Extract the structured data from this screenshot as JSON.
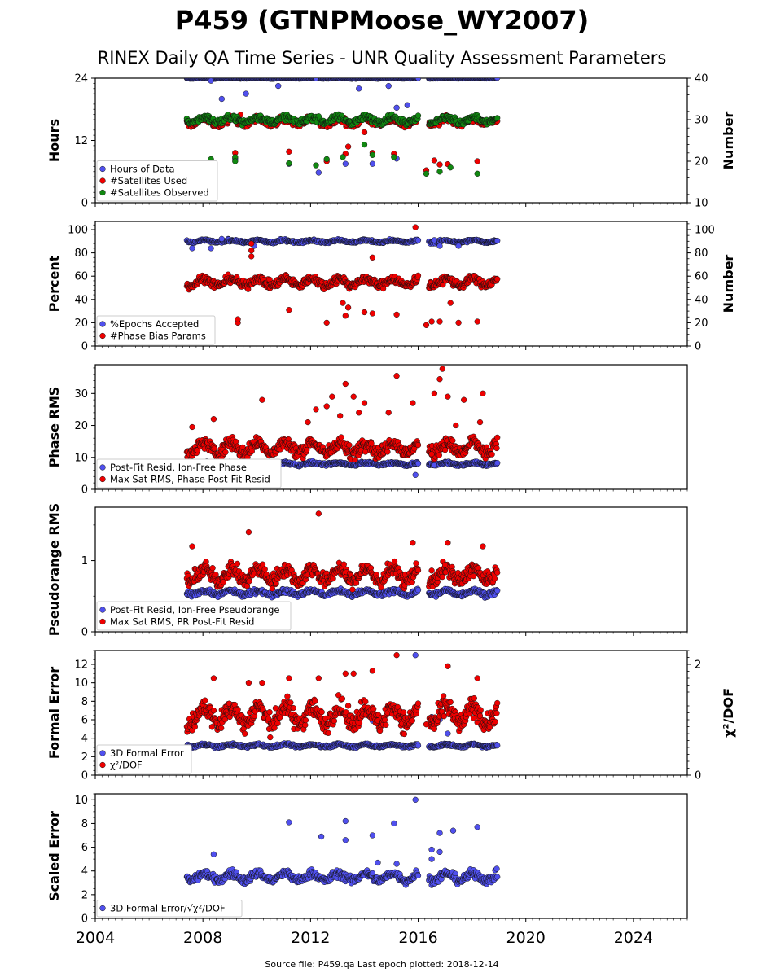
{
  "title": "P459 (GTNPMoose_WY2007)",
  "subtitle": "RINEX Daily QA Time Series - UNR Quality Assessment Parameters",
  "footer": "Source file: P459.qa Last epoch plotted: 2018-12-14",
  "x_axis": {
    "range": [
      2004,
      2026
    ],
    "ticks": [
      "2004",
      "2008",
      "2012",
      "2016",
      "2020",
      "2024"
    ]
  },
  "colors": {
    "blue": "#5050ee",
    "red": "#ee0000",
    "green": "#118811"
  },
  "chart_data": [
    {
      "type": "scatter",
      "ylabel": "Hours",
      "right_ylabel": "Number",
      "ylim": [
        0,
        24
      ],
      "yticks": [
        "0",
        "12",
        "24"
      ],
      "right_ylim": [
        10,
        40
      ],
      "right_yticks": [
        "10",
        "20",
        "30",
        "40"
      ],
      "legend": [
        "Hours of Data",
        "#Satellites Used",
        "#Satellites Observed"
      ],
      "series": [
        {
          "name": "Hours of Data",
          "axis": "left",
          "color": "blue",
          "gen": {
            "center": 24,
            "spread": 0.1,
            "density": 1.0
          },
          "outliers": [
            [
              2008.3,
              23.5
            ],
            [
              2008.7,
              20.0
            ],
            [
              2008.1,
              16.7
            ],
            [
              2009.6,
              21.0
            ],
            [
              2010.8,
              22.5
            ],
            [
              2012.2,
              24.0
            ],
            [
              2013.8,
              22.0
            ],
            [
              2014.9,
              22.5
            ],
            [
              2015.2,
              18.3
            ],
            [
              2015.6,
              18.8
            ],
            [
              2013.3,
              7.5
            ],
            [
              2012.3,
              5.8
            ],
            [
              2011.2,
              7.5
            ],
            [
              2014.3,
              7.5
            ],
            [
              2015.2,
              8.5
            ],
            [
              2008.3,
              8.2
            ],
            [
              2009.2,
              8.5
            ]
          ]
        },
        {
          "name": "#Satellites Used",
          "axis": "right",
          "color": "red",
          "gen": {
            "center": 29.5,
            "spread": 1.2,
            "density": 0.7
          },
          "outliers": [
            [
              2008.4,
              28.8
            ],
            [
              2009.4,
              31.2
            ],
            [
              2013.4,
              23.5
            ],
            [
              2014.0,
              27.0
            ],
            [
              2011.2,
              22.3
            ],
            [
              2012.6,
              20.0
            ],
            [
              2013.3,
              21.8
            ],
            [
              2015.1,
              21.8
            ],
            [
              2016.6,
              20.2
            ],
            [
              2016.8,
              19.2
            ],
            [
              2017.1,
              19.3
            ],
            [
              2018.2,
              20.0
            ],
            [
              2009.2,
              22.0
            ],
            [
              2014.3,
              22.0
            ],
            [
              2016.3,
              17.8
            ]
          ]
        },
        {
          "name": "#Satellites Observed",
          "axis": "right",
          "color": "green",
          "gen": {
            "center": 30.0,
            "spread": 1.0,
            "density": 0.9
          },
          "outliers": [
            [
              2008.3,
              20.0
            ],
            [
              2009.2,
              21.0
            ],
            [
              2011.2,
              19.5
            ],
            [
              2012.2,
              19.0
            ],
            [
              2013.2,
              21.0
            ],
            [
              2014.0,
              24.0
            ],
            [
              2014.3,
              21.5
            ],
            [
              2015.1,
              21.0
            ],
            [
              2016.3,
              17.0
            ],
            [
              2016.8,
              17.5
            ],
            [
              2017.2,
              18.5
            ],
            [
              2018.2,
              17.0
            ],
            [
              2012.6,
              20.5
            ],
            [
              2009.2,
              20.0
            ],
            [
              2008.3,
              20.5
            ]
          ]
        }
      ]
    },
    {
      "type": "scatter",
      "ylabel": "Percent",
      "right_ylabel": "Number",
      "ylim": [
        0,
        107
      ],
      "yticks": [
        "0",
        "20",
        "40",
        "60",
        "80",
        "100"
      ],
      "right_ylim": [
        0,
        107
      ],
      "right_yticks": [
        "0",
        "20",
        "40",
        "60",
        "80",
        "100"
      ],
      "legend": [
        "%Epochs Accepted",
        "#Phase Bias Params"
      ],
      "series": [
        {
          "name": "%Epochs Accepted",
          "axis": "left",
          "color": "blue",
          "gen": {
            "center": 90,
            "spread": 1.5,
            "density": 0.9
          },
          "outliers": [
            [
              2007.6,
              84.0
            ],
            [
              2008.3,
              84.0
            ],
            [
              2008.7,
              92.0
            ],
            [
              2009.9,
              86.0
            ],
            [
              2016.6,
              91.0
            ],
            [
              2016.8,
              86.0
            ],
            [
              2017.5,
              86.0
            ]
          ]
        },
        {
          "name": "#Phase Bias Params",
          "axis": "right",
          "color": "red",
          "gen": {
            "center": 55,
            "spread": 5.0,
            "density": 1.0
          },
          "outliers": [
            [
              2015.9,
              102.0
            ],
            [
              2009.8,
              88.0
            ],
            [
              2009.8,
              82.0
            ],
            [
              2009.8,
              77.0
            ],
            [
              2014.3,
              76.0
            ],
            [
              2017.2,
              37.0
            ],
            [
              2013.2,
              37.0
            ],
            [
              2013.4,
              33.0
            ],
            [
              2011.2,
              31.0
            ],
            [
              2013.3,
              26.0
            ],
            [
              2014.0,
              29.0
            ],
            [
              2014.3,
              28.0
            ],
            [
              2015.2,
              27.0
            ],
            [
              2012.6,
              20.0
            ],
            [
              2009.3,
              20.0
            ],
            [
              2009.3,
              23.0
            ],
            [
              2016.3,
              18.0
            ],
            [
              2016.5,
              21.0
            ],
            [
              2016.8,
              21.0
            ],
            [
              2017.5,
              20.0
            ],
            [
              2018.2,
              21.0
            ],
            [
              2008.3,
              21.0
            ]
          ]
        }
      ]
    },
    {
      "type": "scatter",
      "ylabel": "Phase RMS",
      "ylim": [
        0,
        39
      ],
      "yticks": [
        "0",
        "10",
        "20",
        "30"
      ],
      "legend": [
        "Post-Fit Resid, Ion-Free Phase",
        "Max Sat RMS, Phase Post-Fit Resid"
      ],
      "series": [
        {
          "name": "Post-Fit Resid, Ion-Free Phase",
          "color": "blue",
          "gen": {
            "center": 8.0,
            "spread": 0.6,
            "density": 0.9
          },
          "outliers": [
            [
              2015.9,
              4.5
            ],
            [
              2016.6,
              7.5
            ],
            [
              2016.6,
              10.5
            ]
          ]
        },
        {
          "name": "Max Sat RMS, Phase Post-Fit Resid",
          "color": "red",
          "gen": {
            "center": 13,
            "spread": 3.0,
            "density": 1.0
          },
          "outliers": [
            [
              2013.3,
              33.0
            ],
            [
              2015.2,
              35.5
            ],
            [
              2016.9,
              37.7
            ],
            [
              2016.8,
              34.5
            ],
            [
              2016.6,
              30.0
            ],
            [
              2017.1,
              29.0
            ],
            [
              2017.7,
              28.0
            ],
            [
              2018.4,
              30.0
            ],
            [
              2012.8,
              29.0
            ],
            [
              2013.6,
              29.0
            ],
            [
              2010.2,
              28.0
            ],
            [
              2014.0,
              27.0
            ],
            [
              2015.8,
              27.0
            ],
            [
              2012.6,
              26.0
            ],
            [
              2012.2,
              25.0
            ],
            [
              2013.8,
              24.0
            ],
            [
              2014.9,
              24.0
            ],
            [
              2013.1,
              23.0
            ],
            [
              2008.4,
              22.0
            ],
            [
              2011.9,
              21.0
            ],
            [
              2018.3,
              21.0
            ],
            [
              2007.6,
              19.5
            ],
            [
              2017.4,
              20.0
            ],
            [
              2016.5,
              11.0
            ]
          ]
        }
      ]
    },
    {
      "type": "scatter",
      "ylabel": "Pseudorange RMS",
      "ylim": [
        0,
        1.75
      ],
      "yticks": [
        "0",
        "1"
      ],
      "legend": [
        "Post-Fit Resid, Ion-Free Pseudorange",
        "Max Sat RMS, PR Post-Fit Resid"
      ],
      "series": [
        {
          "name": "Post-Fit Resid, Ion-Free Pseudorange",
          "color": "blue",
          "gen": {
            "center": 0.55,
            "spread": 0.05,
            "density": 0.9
          },
          "outliers": []
        },
        {
          "name": "Max Sat RMS, PR Post-Fit Resid",
          "color": "red",
          "gen": {
            "center": 0.8,
            "spread": 0.15,
            "density": 1.0
          },
          "outliers": [
            [
              2012.3,
              1.66
            ],
            [
              2009.7,
              1.4
            ],
            [
              2015.8,
              1.25
            ],
            [
              2016.5,
              0.86
            ],
            [
              2017.0,
              0.94
            ],
            [
              2017.1,
              1.25
            ],
            [
              2018.4,
              1.2
            ],
            [
              2007.6,
              1.2
            ]
          ]
        }
      ]
    },
    {
      "type": "scatter",
      "ylabel": "Formal Error",
      "right_ylabel": "χ²/DOF",
      "ylim": [
        0,
        13.5
      ],
      "yticks": [
        "0",
        "2",
        "4",
        "6",
        "8",
        "10",
        "12"
      ],
      "right_ylim": [
        0,
        2.25
      ],
      "right_yticks": [
        "0",
        "2"
      ],
      "legend": [
        "3D Formal Error",
        "χ²/DOF"
      ],
      "series": [
        {
          "name": "3D Formal Error",
          "color": "blue",
          "axis": "left",
          "gen": {
            "center": 3.2,
            "spread": 0.2,
            "density": 0.9
          },
          "outliers": [
            [
              2015.9,
              13.0
            ],
            [
              2016.5,
              6.3
            ],
            [
              2016.8,
              6.0
            ],
            [
              2014.3,
              5.9
            ],
            [
              2017.1,
              4.5
            ]
          ]
        },
        {
          "name": "χ²/DOF",
          "color": "red",
          "axis": "left",
          "gen": {
            "center": 6.5,
            "spread": 1.6,
            "density": 1.0
          },
          "outliers": [
            [
              2015.2,
              13.0
            ],
            [
              2017.1,
              11.8
            ],
            [
              2013.3,
              11.0
            ],
            [
              2013.6,
              11.0
            ],
            [
              2014.3,
              11.3
            ],
            [
              2011.2,
              10.5
            ],
            [
              2012.3,
              10.5
            ],
            [
              2008.4,
              10.5
            ],
            [
              2018.2,
              10.5
            ],
            [
              2009.7,
              10.0
            ],
            [
              2010.2,
              10.0
            ],
            [
              2016.6,
              5.0
            ],
            [
              2016.3,
              5.5
            ]
          ]
        }
      ]
    },
    {
      "type": "scatter",
      "ylabel": "Scaled Error",
      "ylim": [
        0,
        10.5
      ],
      "yticks": [
        "0",
        "2",
        "4",
        "6",
        "8",
        "10"
      ],
      "legend": [
        "3D Formal Error/√χ²/DOF"
      ],
      "series": [
        {
          "name": "3D Formal Error/√χ²/DOF",
          "color": "blue",
          "gen": {
            "center": 3.5,
            "spread": 0.5,
            "density": 1.0
          },
          "outliers": [
            [
              2015.9,
              10.0
            ],
            [
              2011.2,
              8.1
            ],
            [
              2013.3,
              8.2
            ],
            [
              2015.1,
              8.0
            ],
            [
              2018.2,
              7.7
            ],
            [
              2017.3,
              7.4
            ],
            [
              2016.8,
              7.2
            ],
            [
              2012.4,
              6.9
            ],
            [
              2014.3,
              7.0
            ],
            [
              2013.3,
              6.6
            ],
            [
              2016.5,
              5.8
            ],
            [
              2016.8,
              5.6
            ],
            [
              2016.5,
              5.0
            ],
            [
              2008.4,
              5.4
            ],
            [
              2014.5,
              4.7
            ],
            [
              2015.2,
              4.6
            ]
          ]
        }
      ]
    }
  ],
  "data_windows": [
    [
      2007.4,
      2016.0
    ],
    [
      2016.4,
      2018.95
    ]
  ]
}
